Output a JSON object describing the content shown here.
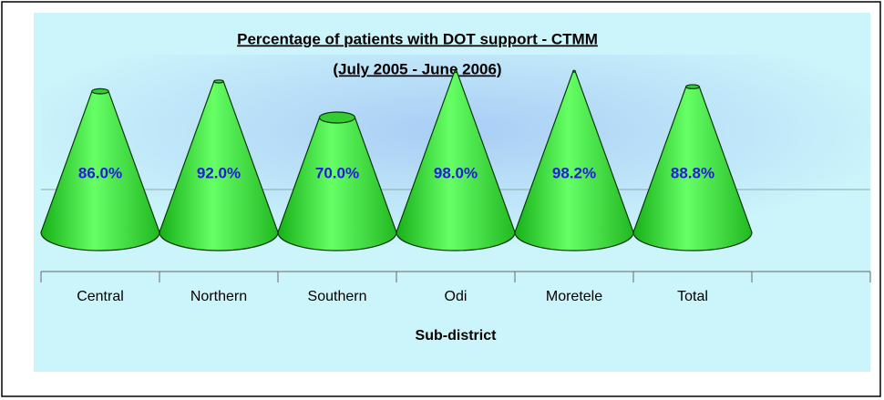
{
  "chart_data": {
    "type": "cone",
    "title": "Percentage of patients with DOT support - CTMM",
    "subtitle": "(July 2005 - June 2006)",
    "x_label": "Sub-district",
    "categories": [
      "Central",
      "Northern",
      "Southern",
      "Odi",
      "Moretele",
      "Total",
      null
    ],
    "values": [
      86.0,
      92.0,
      70.0,
      98.0,
      98.2,
      88.8,
      null
    ],
    "value_labels": [
      "86.0%",
      "92.0%",
      "70.0%",
      "98.0%",
      "98.2%",
      "88.8%",
      null
    ],
    "color": "#33dd33",
    "ylim": [
      0,
      100
    ]
  }
}
